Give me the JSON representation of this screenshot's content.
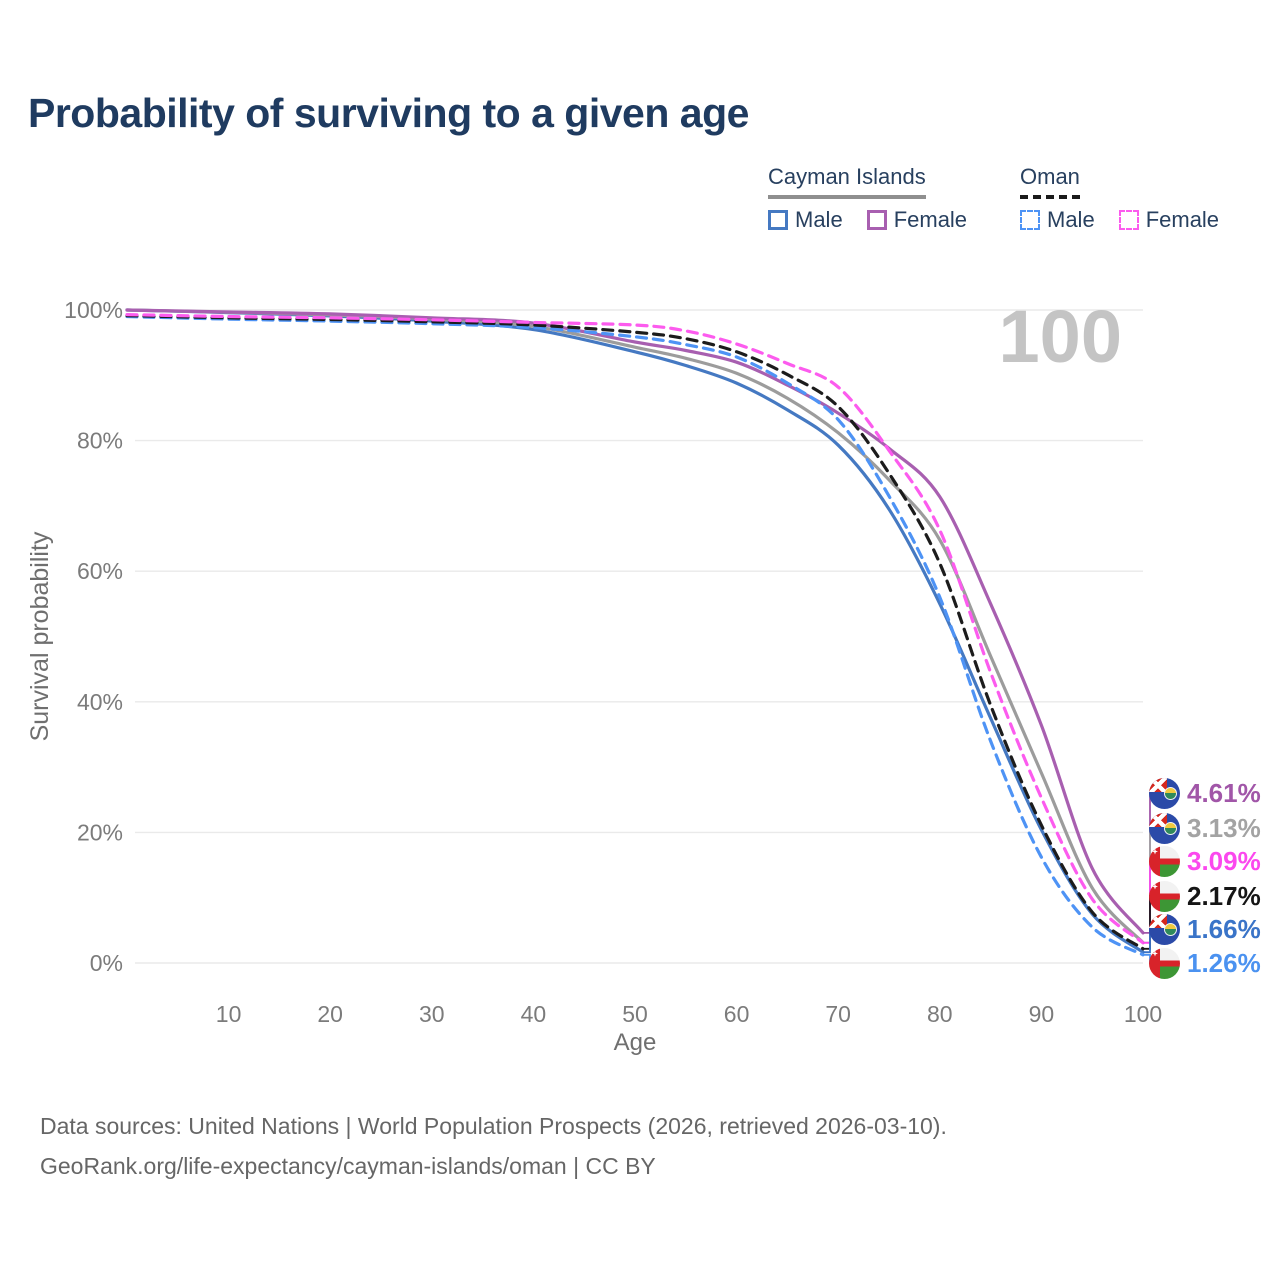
{
  "header": {
    "title": "Probability of surviving to a given age"
  },
  "legend": {
    "groups": [
      {
        "name": "Cayman Islands",
        "line_style": "solid",
        "line_color": "#8f8f8f",
        "items": [
          {
            "label": "Male",
            "swatch_color": "#4579c2",
            "swatch_style": "solid"
          },
          {
            "label": "Female",
            "swatch_color": "#a85fb0",
            "swatch_style": "solid"
          }
        ]
      },
      {
        "name": "Oman",
        "line_style": "dashed",
        "line_color": "#1a1a1a",
        "items": [
          {
            "label": "Male",
            "swatch_color": "#4e93f5",
            "swatch_style": "dashed"
          },
          {
            "label": "Female",
            "swatch_color": "#fc5bee",
            "swatch_style": "dashed"
          }
        ]
      }
    ]
  },
  "watermark": {
    "text": "100",
    "color": "#c4c4c4"
  },
  "chart_data": {
    "type": "line",
    "title": "Probability of surviving to a given age",
    "xlabel": "Age",
    "ylabel": "Survival probability",
    "xlim": [
      0,
      100
    ],
    "ylim": [
      0,
      100
    ],
    "grid": "horizontal-only",
    "legend_position": "top-right",
    "x_ticks": [
      10,
      20,
      30,
      40,
      50,
      60,
      70,
      80,
      90,
      100
    ],
    "y_ticks": [
      0,
      20,
      40,
      60,
      80,
      100
    ],
    "y_tick_labels": [
      "0%",
      "20%",
      "40%",
      "60%",
      "80%",
      "100%"
    ],
    "x": [
      0,
      10,
      20,
      30,
      40,
      50,
      55,
      60,
      65,
      70,
      75,
      80,
      85,
      90,
      95,
      100
    ],
    "series": [
      {
        "name": "Cayman Islands Male",
        "country": "Cayman Islands",
        "sex": "Male",
        "color": "#4579c2",
        "dash": false,
        "values": [
          100,
          99.6,
          99.1,
          98.3,
          97.0,
          93.6,
          91.5,
          88.8,
          84.7,
          79.3,
          69.5,
          55.0,
          37.5,
          20.4,
          7.5,
          1.66
        ]
      },
      {
        "name": "Cayman Islands Total",
        "country": "Cayman Islands",
        "sex": "Both",
        "color": "#9c9c9c",
        "dash": false,
        "values": [
          100,
          99.65,
          99.25,
          98.6,
          97.5,
          94.3,
          92.6,
          90.3,
          86.5,
          81.2,
          74.0,
          64.8,
          47.0,
          29.1,
          11.5,
          3.13
        ]
      },
      {
        "name": "Cayman Islands Female",
        "country": "Cayman Islands",
        "sex": "Female",
        "color": "#a85fb0",
        "dash": false,
        "values": [
          100,
          99.7,
          99.4,
          98.8,
          98.0,
          95.1,
          93.8,
          92.0,
          88.5,
          84.2,
          78.8,
          71.4,
          55.0,
          36.4,
          14.5,
          4.61
        ]
      },
      {
        "name": "Oman Male",
        "country": "Oman",
        "sex": "Male",
        "color": "#4e93f5",
        "dash": true,
        "values": [
          99.0,
          98.6,
          98.3,
          97.9,
          97.3,
          95.9,
          94.7,
          92.8,
          88.8,
          83.2,
          71.5,
          56.0,
          34.0,
          16.2,
          5.5,
          1.26
        ]
      },
      {
        "name": "Oman Total",
        "country": "Oman",
        "sex": "Both",
        "color": "#1c1c1c",
        "dash": true,
        "values": [
          99.15,
          98.8,
          98.55,
          98.2,
          97.7,
          96.6,
          95.6,
          93.6,
          90.1,
          85.2,
          75.0,
          61.2,
          39.5,
          21.1,
          7.8,
          2.17
        ]
      },
      {
        "name": "Oman Female",
        "country": "Oman",
        "sex": "Female",
        "color": "#fc5bee",
        "dash": true,
        "values": [
          99.3,
          99.0,
          98.8,
          98.5,
          98.1,
          97.7,
          96.8,
          94.8,
          91.8,
          88.2,
          78.5,
          66.3,
          44.5,
          25.3,
          9.8,
          3.09
        ]
      }
    ]
  },
  "end_labels": [
    {
      "country": "Cayman Islands",
      "flag": "cayman-islands-flag",
      "series": "Cayman Islands Female",
      "value": "4.61%",
      "color": "#a156a8",
      "end_value": 4.61
    },
    {
      "country": "Cayman Islands",
      "flag": "cayman-islands-flag",
      "series": "Cayman Islands Total",
      "value": "3.13%",
      "color": "#a3a3a3",
      "end_value": 3.13
    },
    {
      "country": "Oman",
      "flag": "oman-flag",
      "series": "Oman Female",
      "value": "3.09%",
      "color": "#fb48ee",
      "end_value": 3.09
    },
    {
      "country": "Oman",
      "flag": "oman-flag",
      "series": "Oman Total",
      "value": "2.17%",
      "color": "#151515",
      "end_value": 2.17
    },
    {
      "country": "Cayman Islands",
      "flag": "cayman-islands-flag",
      "series": "Cayman Islands Male",
      "value": "1.66%",
      "color": "#3a74c8",
      "end_value": 1.66
    },
    {
      "country": "Oman",
      "flag": "oman-flag",
      "series": "Oman Male",
      "value": "1.26%",
      "color": "#4b92f0",
      "end_value": 1.26
    }
  ],
  "footer": {
    "line1": "Data sources: United Nations | World Population Prospects (2026, retrieved 2026-03-10).",
    "line2": "GeoRank.org/life-expectancy/cayman-islands/oman | CC BY"
  }
}
